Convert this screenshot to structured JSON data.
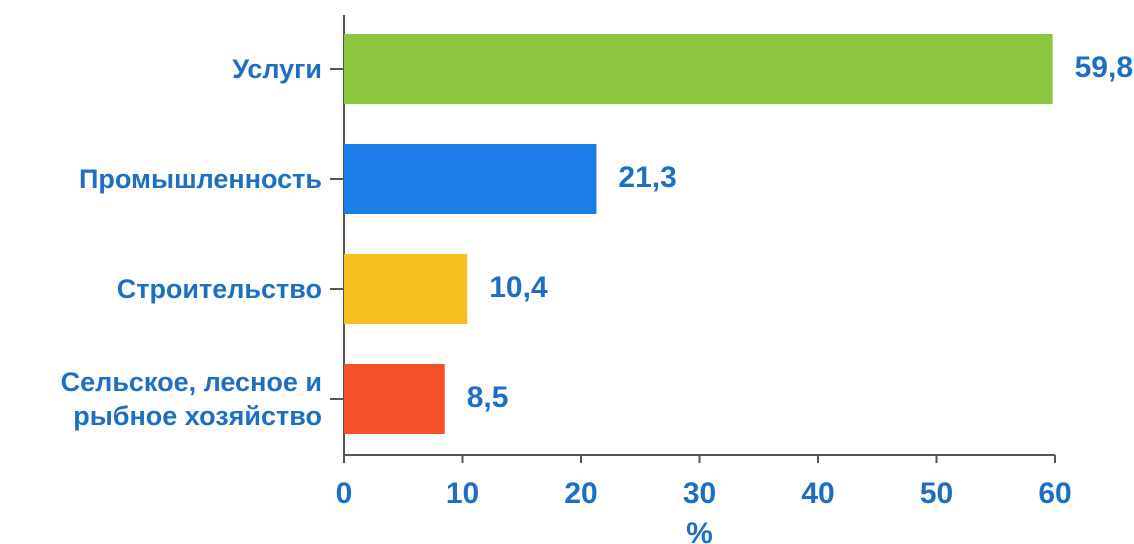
{
  "chart_data": {
    "type": "barh",
    "categories": [
      "Услуги",
      "Промышленность",
      "Строительство",
      "Сельское, лесное и рыбное хозяйство"
    ],
    "values": [
      59.8,
      21.3,
      10.4,
      8.5
    ],
    "value_labels": [
      "59,8",
      "21,3",
      "10,4",
      "8,5"
    ],
    "colors": [
      "#8dc63f",
      "#1a7ee6",
      "#f4c020",
      "#f5502a"
    ],
    "xlim": [
      0,
      60
    ],
    "xticks": [
      0,
      10,
      20,
      30,
      40,
      50,
      60
    ],
    "x_label": "%"
  }
}
